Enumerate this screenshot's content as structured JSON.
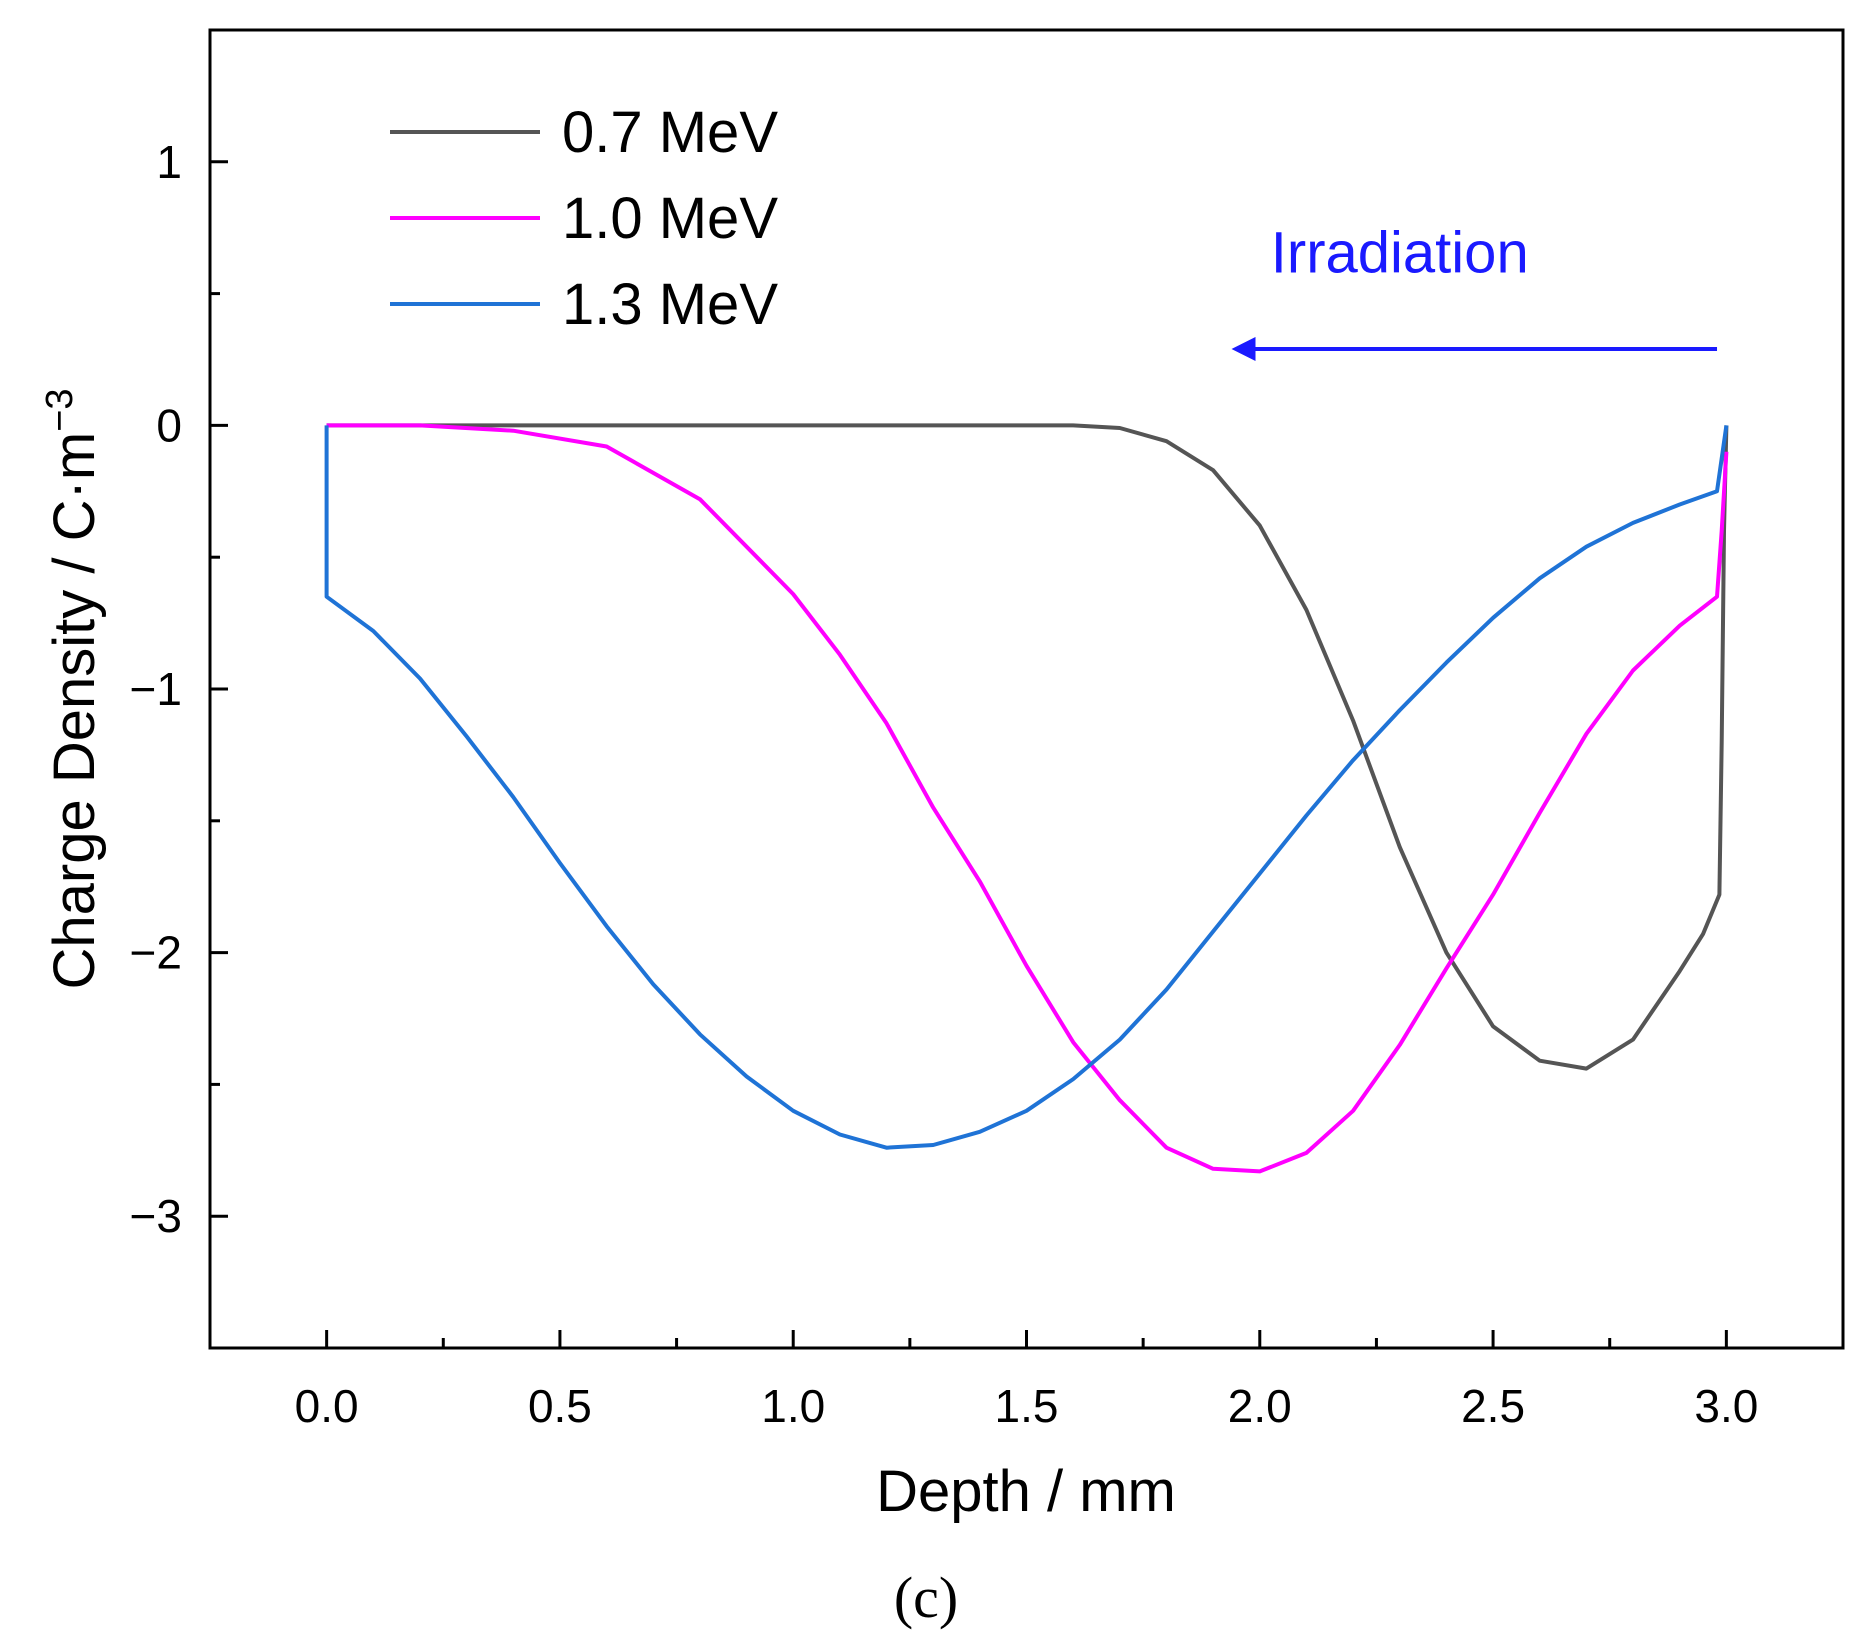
{
  "chart_data": {
    "type": "line",
    "xlabel": "Depth / mm",
    "ylabel_main": "Charge Density / C·m",
    "ylabel_exponent": "−3",
    "xlim": [
      -0.25,
      3.25
    ],
    "ylim": [
      -3.5,
      1.5
    ],
    "x_ticks": [
      {
        "value": 0.0,
        "label": "0.0"
      },
      {
        "value": 0.5,
        "label": "0.5"
      },
      {
        "value": 1.0,
        "label": "1.0"
      },
      {
        "value": 1.5,
        "label": "1.5"
      },
      {
        "value": 2.0,
        "label": "2.0"
      },
      {
        "value": 2.5,
        "label": "2.5"
      },
      {
        "value": 3.0,
        "label": "3.0"
      }
    ],
    "y_ticks": [
      {
        "value": 1,
        "label": "1"
      },
      {
        "value": 0,
        "label": "0"
      },
      {
        "value": -1,
        "label": "−1"
      },
      {
        "value": -2,
        "label": "−2"
      },
      {
        "value": -3,
        "label": "−3"
      }
    ],
    "legend_position": "top-left",
    "series": [
      {
        "name": "0.7 MeV",
        "color": "#555555",
        "points": [
          [
            0,
            0
          ],
          [
            0.5,
            0
          ],
          [
            1.0,
            0
          ],
          [
            1.4,
            0
          ],
          [
            1.6,
            0
          ],
          [
            1.7,
            -0.01
          ],
          [
            1.8,
            -0.06
          ],
          [
            1.9,
            -0.17
          ],
          [
            2.0,
            -0.38
          ],
          [
            2.1,
            -0.7
          ],
          [
            2.2,
            -1.12
          ],
          [
            2.3,
            -1.6
          ],
          [
            2.4,
            -2.0
          ],
          [
            2.5,
            -2.28
          ],
          [
            2.6,
            -2.41
          ],
          [
            2.7,
            -2.44
          ],
          [
            2.8,
            -2.33
          ],
          [
            2.9,
            -2.07
          ],
          [
            2.95,
            -1.93
          ],
          [
            2.985,
            -1.78
          ],
          [
            2.99,
            -1.2
          ],
          [
            2.995,
            -0.4
          ],
          [
            3.0,
            0
          ]
        ]
      },
      {
        "name": "1.0 MeV",
        "color": "#ff00ff",
        "points": [
          [
            0,
            0
          ],
          [
            0.2,
            0
          ],
          [
            0.4,
            -0.02
          ],
          [
            0.6,
            -0.08
          ],
          [
            0.8,
            -0.28
          ],
          [
            1.0,
            -0.64
          ],
          [
            1.1,
            -0.87
          ],
          [
            1.2,
            -1.13
          ],
          [
            1.3,
            -1.45
          ],
          [
            1.4,
            -1.73
          ],
          [
            1.5,
            -2.05
          ],
          [
            1.6,
            -2.34
          ],
          [
            1.7,
            -2.56
          ],
          [
            1.8,
            -2.74
          ],
          [
            1.9,
            -2.82
          ],
          [
            2.0,
            -2.83
          ],
          [
            2.1,
            -2.76
          ],
          [
            2.2,
            -2.6
          ],
          [
            2.3,
            -2.35
          ],
          [
            2.4,
            -2.06
          ],
          [
            2.5,
            -1.78
          ],
          [
            2.6,
            -1.47
          ],
          [
            2.7,
            -1.17
          ],
          [
            2.8,
            -0.93
          ],
          [
            2.9,
            -0.76
          ],
          [
            2.98,
            -0.65
          ],
          [
            2.99,
            -0.4
          ],
          [
            3.0,
            -0.1
          ]
        ]
      },
      {
        "name": "1.3 MeV",
        "color": "#1f73d6",
        "points": [
          [
            0,
            0
          ],
          [
            0,
            -0.65
          ],
          [
            0.1,
            -0.78
          ],
          [
            0.2,
            -0.96
          ],
          [
            0.3,
            -1.18
          ],
          [
            0.4,
            -1.41
          ],
          [
            0.5,
            -1.66
          ],
          [
            0.6,
            -1.9
          ],
          [
            0.7,
            -2.12
          ],
          [
            0.8,
            -2.31
          ],
          [
            0.9,
            -2.47
          ],
          [
            1.0,
            -2.6
          ],
          [
            1.1,
            -2.69
          ],
          [
            1.2,
            -2.74
          ],
          [
            1.3,
            -2.73
          ],
          [
            1.4,
            -2.68
          ],
          [
            1.5,
            -2.6
          ],
          [
            1.6,
            -2.48
          ],
          [
            1.7,
            -2.33
          ],
          [
            1.8,
            -2.14
          ],
          [
            1.9,
            -1.92
          ],
          [
            2.0,
            -1.7
          ],
          [
            2.1,
            -1.48
          ],
          [
            2.2,
            -1.27
          ],
          [
            2.3,
            -1.08
          ],
          [
            2.4,
            -0.9
          ],
          [
            2.5,
            -0.73
          ],
          [
            2.6,
            -0.58
          ],
          [
            2.7,
            -0.46
          ],
          [
            2.8,
            -0.37
          ],
          [
            2.9,
            -0.3
          ],
          [
            2.98,
            -0.25
          ],
          [
            3.0,
            0
          ]
        ]
      }
    ],
    "annotation": {
      "text": "Irradiation",
      "color": "#1a1aff",
      "arrow_from": [
        2.98,
        0.29
      ],
      "arrow_to": [
        1.96,
        0.29
      ],
      "label_anchor": [
        2.3,
        0.58
      ]
    }
  },
  "caption": "(c)"
}
